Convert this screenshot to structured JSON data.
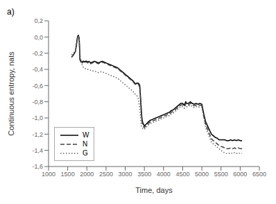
{
  "chart_data": {
    "type": "line",
    "title": "a)",
    "x_label": "Time, days",
    "y_label": "Continuous entropy, nats",
    "xlim": [
      1000,
      6500
    ],
    "ylim": [
      -1.6,
      0.2
    ],
    "xticks": [
      1000,
      1500,
      2000,
      2500,
      3000,
      3500,
      4000,
      4500,
      5000,
      5500,
      6000,
      6500
    ],
    "yticks": [
      {
        "value": 0.2,
        "label": "0,2"
      },
      {
        "value": 0.0,
        "label": "0,0"
      },
      {
        "value": -0.2,
        "label": "-0,2"
      },
      {
        "value": -0.4,
        "label": "-0,4"
      },
      {
        "value": -0.6,
        "label": "-0,6"
      },
      {
        "value": -0.8,
        "label": "-0,8"
      },
      {
        "value": -1.0,
        "label": "-1,0"
      },
      {
        "value": -1.2,
        "label": "-1,2"
      },
      {
        "value": -1.4,
        "label": "-1,4"
      },
      {
        "value": -1.6,
        "label": "-1,6"
      }
    ],
    "grid": false,
    "legend": "lower left",
    "x": [
      1600,
      1650,
      1700,
      1720,
      1740,
      1760,
      1780,
      1800,
      1820,
      1840,
      1860,
      1880,
      1900,
      1920,
      1940,
      1960,
      1980,
      2000,
      2020,
      2050,
      2100,
      2150,
      2200,
      2250,
      2300,
      2350,
      2400,
      2450,
      2500,
      2550,
      2600,
      2650,
      2700,
      2750,
      2800,
      2850,
      2900,
      2950,
      3000,
      3050,
      3100,
      3150,
      3200,
      3250,
      3280,
      3300,
      3320,
      3340,
      3360,
      3380,
      3400,
      3420,
      3440,
      3460,
      3480,
      3500,
      3520,
      3540,
      3560,
      3600,
      3650,
      3700,
      3750,
      3800,
      3850,
      3900,
      3950,
      4000,
      4050,
      4100,
      4150,
      4200,
      4250,
      4300,
      4350,
      4400,
      4450,
      4480,
      4500,
      4520,
      4540,
      4560,
      4580,
      4600,
      4650,
      4700,
      4750,
      4800,
      4850,
      4900,
      4950,
      5000,
      5050,
      5100,
      5150,
      5200,
      5250,
      5300,
      5350,
      5400,
      5450,
      5500,
      5550,
      5600,
      5650,
      5700,
      5750,
      5800,
      5850,
      5900,
      5950,
      6000,
      6050
    ],
    "series": [
      {
        "name": "W",
        "color": "#000000",
        "line_style": "solid",
        "values": [
          -0.25,
          -0.22,
          -0.18,
          -0.12,
          -0.05,
          0.01,
          0.02,
          -0.02,
          -0.28,
          -0.3,
          -0.3,
          -0.31,
          -0.3,
          -0.3,
          -0.31,
          -0.3,
          -0.3,
          -0.3,
          -0.31,
          -0.3,
          -0.32,
          -0.31,
          -0.3,
          -0.31,
          -0.32,
          -0.31,
          -0.3,
          -0.31,
          -0.32,
          -0.33,
          -0.34,
          -0.35,
          -0.36,
          -0.37,
          -0.38,
          -0.4,
          -0.42,
          -0.44,
          -0.46,
          -0.48,
          -0.5,
          -0.52,
          -0.54,
          -0.57,
          -0.58,
          -0.57,
          -0.57,
          -0.57,
          -0.58,
          -0.6,
          -0.75,
          -0.9,
          -1.02,
          -1.06,
          -1.08,
          -1.1,
          -1.09,
          -1.08,
          -1.07,
          -1.05,
          -1.03,
          -1.02,
          -1.01,
          -1.0,
          -0.99,
          -0.98,
          -0.97,
          -0.96,
          -0.95,
          -0.94,
          -0.93,
          -0.91,
          -0.9,
          -0.88,
          -0.86,
          -0.84,
          -0.82,
          -0.82,
          -0.82,
          -0.83,
          -0.84,
          -0.82,
          -0.8,
          -0.82,
          -0.82,
          -0.8,
          -0.82,
          -0.83,
          -0.82,
          -0.83,
          -0.82,
          -0.83,
          -0.95,
          -1.05,
          -1.1,
          -1.15,
          -1.2,
          -1.22,
          -1.24,
          -1.25,
          -1.27,
          -1.27,
          -1.27,
          -1.27,
          -1.28,
          -1.28,
          -1.27,
          -1.28,
          -1.27,
          -1.28,
          -1.27,
          -1.28,
          -1.28
        ]
      },
      {
        "name": "N",
        "color": "#444444",
        "line_style": "dashed",
        "values": [
          -0.25,
          -0.22,
          -0.18,
          -0.12,
          -0.05,
          0.01,
          0.02,
          -0.02,
          -0.29,
          -0.31,
          -0.31,
          -0.32,
          -0.31,
          -0.31,
          -0.32,
          -0.31,
          -0.31,
          -0.31,
          -0.32,
          -0.31,
          -0.33,
          -0.32,
          -0.31,
          -0.32,
          -0.33,
          -0.32,
          -0.31,
          -0.32,
          -0.33,
          -0.34,
          -0.35,
          -0.36,
          -0.37,
          -0.38,
          -0.39,
          -0.41,
          -0.43,
          -0.45,
          -0.47,
          -0.49,
          -0.51,
          -0.53,
          -0.55,
          -0.58,
          -0.59,
          -0.58,
          -0.58,
          -0.58,
          -0.6,
          -0.62,
          -0.78,
          -0.94,
          -1.05,
          -1.09,
          -1.11,
          -1.12,
          -1.11,
          -1.1,
          -1.09,
          -1.07,
          -1.05,
          -1.04,
          -1.03,
          -1.02,
          -1.01,
          -1.0,
          -0.99,
          -0.98,
          -0.97,
          -0.96,
          -0.95,
          -0.93,
          -0.92,
          -0.9,
          -0.88,
          -0.86,
          -0.84,
          -0.84,
          -0.84,
          -0.85,
          -0.86,
          -0.84,
          -0.82,
          -0.84,
          -0.84,
          -0.82,
          -0.84,
          -0.85,
          -0.84,
          -0.85,
          -0.84,
          -0.85,
          -0.98,
          -1.08,
          -1.14,
          -1.2,
          -1.26,
          -1.28,
          -1.3,
          -1.32,
          -1.34,
          -1.35,
          -1.36,
          -1.37,
          -1.38,
          -1.38,
          -1.37,
          -1.38,
          -1.37,
          -1.38,
          -1.37,
          -1.38,
          -1.38
        ]
      },
      {
        "name": "G",
        "color": "#666666",
        "line_style": "dotted",
        "values": [
          -0.22,
          -0.2,
          -0.17,
          -0.13,
          -0.08,
          -0.02,
          0.0,
          -0.05,
          -0.22,
          -0.27,
          -0.32,
          -0.35,
          -0.37,
          -0.38,
          -0.39,
          -0.39,
          -0.4,
          -0.4,
          -0.4,
          -0.4,
          -0.41,
          -0.42,
          -0.42,
          -0.43,
          -0.44,
          -0.43,
          -0.43,
          -0.44,
          -0.45,
          -0.46,
          -0.47,
          -0.48,
          -0.49,
          -0.5,
          -0.51,
          -0.53,
          -0.55,
          -0.57,
          -0.59,
          -0.61,
          -0.63,
          -0.65,
          -0.67,
          -0.7,
          -0.71,
          -0.72,
          -0.74,
          -0.76,
          -0.82,
          -0.88,
          -1.0,
          -1.1,
          -1.12,
          -1.13,
          -1.14,
          -1.14,
          -1.13,
          -1.12,
          -1.11,
          -1.09,
          -1.07,
          -1.06,
          -1.05,
          -1.04,
          -1.03,
          -1.02,
          -1.01,
          -1.0,
          -0.99,
          -0.98,
          -0.97,
          -0.95,
          -0.94,
          -0.92,
          -0.9,
          -0.88,
          -0.86,
          -0.86,
          -0.86,
          -0.87,
          -0.88,
          -0.86,
          -0.84,
          -0.86,
          -0.86,
          -0.84,
          -0.86,
          -0.87,
          -0.86,
          -0.87,
          -0.86,
          -0.87,
          -1.0,
          -1.12,
          -1.18,
          -1.24,
          -1.3,
          -1.32,
          -1.34,
          -1.36,
          -1.38,
          -1.4,
          -1.42,
          -1.43,
          -1.44,
          -1.44,
          -1.43,
          -1.44,
          -1.43,
          -1.44,
          -1.43,
          -1.44,
          -1.44
        ]
      }
    ]
  }
}
